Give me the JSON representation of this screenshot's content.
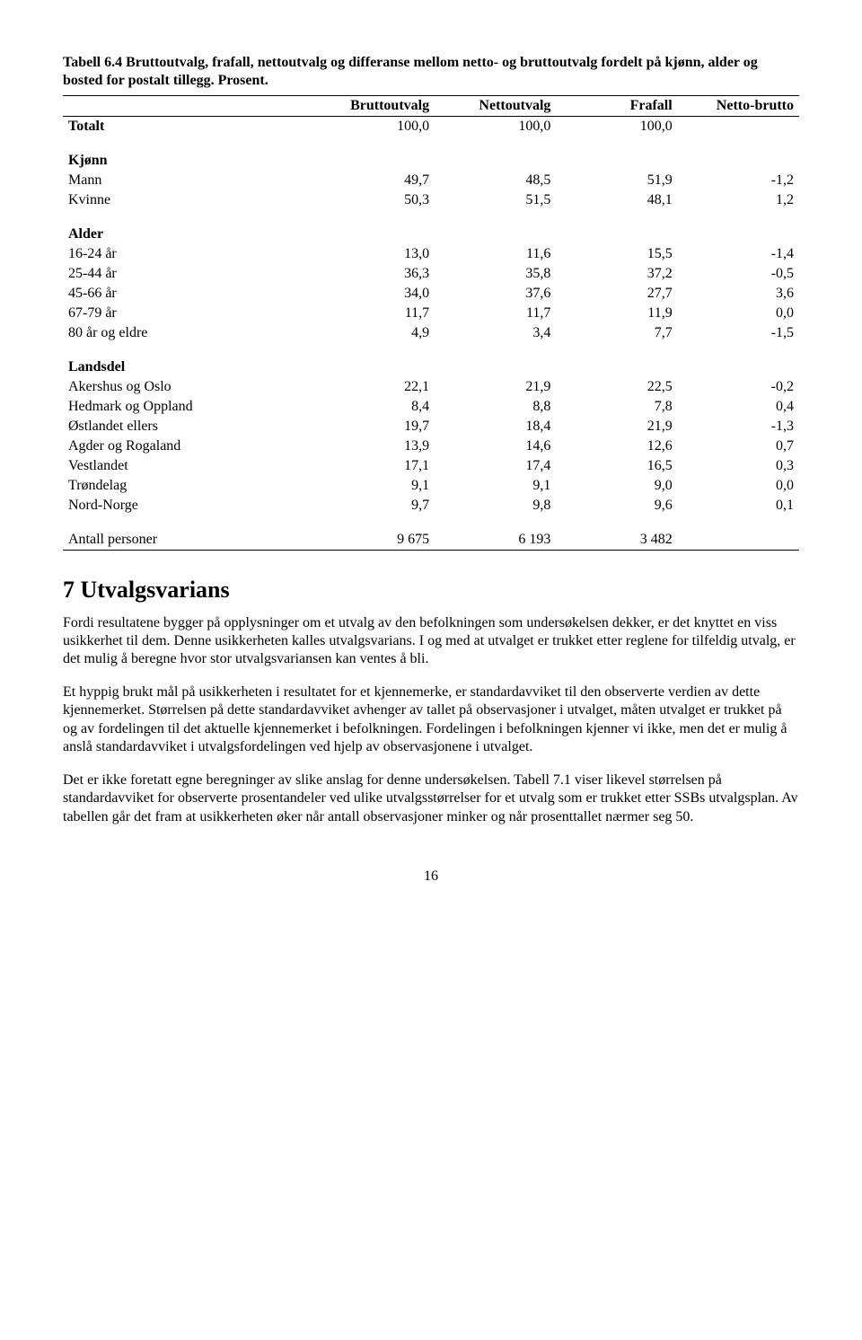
{
  "table_caption": "Tabell 6.4 Bruttoutvalg, frafall, nettoutvalg og differanse mellom netto- og bruttoutvalg fordelt på kjønn, alder og bosted for postalt tillegg. Prosent.",
  "table": {
    "columns": [
      "",
      "Bruttoutvalg",
      "Nettoutvalg",
      "Frafall",
      "Netto-brutto"
    ],
    "totalt": {
      "label": "Totalt",
      "vals": [
        "100,0",
        "100,0",
        "100,0",
        ""
      ]
    },
    "kjonn_label": "Kjønn",
    "kjonn_rows": [
      {
        "label": "Mann",
        "vals": [
          "49,7",
          "48,5",
          "51,9",
          "-1,2"
        ]
      },
      {
        "label": "Kvinne",
        "vals": [
          "50,3",
          "51,5",
          "48,1",
          "1,2"
        ]
      }
    ],
    "alder_label": "Alder",
    "alder_rows": [
      {
        "label": "16-24 år",
        "vals": [
          "13,0",
          "11,6",
          "15,5",
          "-1,4"
        ]
      },
      {
        "label": "25-44 år",
        "vals": [
          "36,3",
          "35,8",
          "37,2",
          "-0,5"
        ]
      },
      {
        "label": "45-66 år",
        "vals": [
          "34,0",
          "37,6",
          "27,7",
          "3,6"
        ]
      },
      {
        "label": "67-79 år",
        "vals": [
          "11,7",
          "11,7",
          "11,9",
          "0,0"
        ]
      },
      {
        "label": "80 år og eldre",
        "vals": [
          "4,9",
          "3,4",
          "7,7",
          "-1,5"
        ]
      }
    ],
    "landsdel_label": "Landsdel",
    "landsdel_rows": [
      {
        "label": "Akershus og Oslo",
        "vals": [
          "22,1",
          "21,9",
          "22,5",
          "-0,2"
        ]
      },
      {
        "label": "Hedmark og Oppland",
        "vals": [
          "8,4",
          "8,8",
          "7,8",
          "0,4"
        ]
      },
      {
        "label": "Østlandet ellers",
        "vals": [
          "19,7",
          "18,4",
          "21,9",
          "-1,3"
        ]
      },
      {
        "label": "Agder og Rogaland",
        "vals": [
          "13,9",
          "14,6",
          "12,6",
          "0,7"
        ]
      },
      {
        "label": "Vestlandet",
        "vals": [
          "17,1",
          "17,4",
          "16,5",
          "0,3"
        ]
      },
      {
        "label": "Trøndelag",
        "vals": [
          "9,1",
          "9,1",
          "9,0",
          "0,0"
        ]
      },
      {
        "label": "Nord-Norge",
        "vals": [
          "9,7",
          "9,8",
          "9,6",
          "0,1"
        ]
      }
    ],
    "antall": {
      "label": "Antall personer",
      "vals": [
        "9 675",
        "6 193",
        "3 482",
        ""
      ]
    }
  },
  "heading": "7   Utvalgsvarians",
  "paragraphs": [
    "Fordi resultatene bygger på opplysninger om et utvalg av den befolkningen som undersøkelsen dekker, er det knyttet en viss usikkerhet til dem. Denne usikkerheten kalles utvalgsvarians. I og med at utvalget er trukket etter reglene for tilfeldig utvalg, er det mulig å beregne hvor stor utvalgsvariansen kan ventes å bli.",
    "Et hyppig brukt mål på usikkerheten i resultatet for et kjennemerke, er standardavviket til den observerte verdien av dette kjennemerket. Størrelsen på dette standardavviket avhenger av tallet på observasjoner i utvalget, måten utvalget er trukket på og av fordelingen til det aktuelle kjennemerket i befolkningen. Fordelingen i befolkningen kjenner vi ikke, men det er mulig å anslå standardavviket i utvalgsfordelingen ved hjelp av observasjonene i utvalget.",
    "Det er ikke foretatt egne beregninger av slike anslag for denne undersøkelsen. Tabell 7.1 viser likevel størrelsen på standardavviket for observerte prosentandeler ved ulike utvalgsstørrelser for et utvalg som er trukket etter SSBs utvalgsplan. Av tabellen går det fram at usikkerheten øker når antall observasjoner minker og når prosenttallet nærmer seg 50."
  ],
  "page_number": "16"
}
